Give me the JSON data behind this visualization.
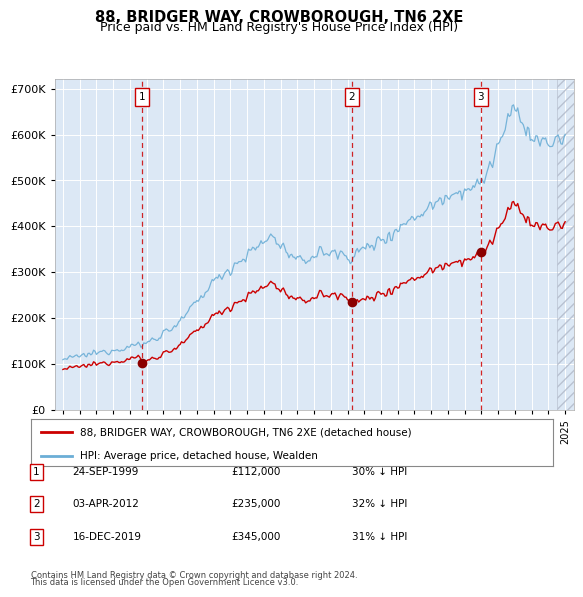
{
  "title": "88, BRIDGER WAY, CROWBOROUGH, TN6 2XE",
  "subtitle": "Price paid vs. HM Land Registry's House Price Index (HPI)",
  "legend_label_red": "88, BRIDGER WAY, CROWBOROUGH, TN6 2XE (detached house)",
  "legend_label_blue": "HPI: Average price, detached house, Wealden",
  "footer_line1": "Contains HM Land Registry data © Crown copyright and database right 2024.",
  "footer_line2": "This data is licensed under the Open Government Licence v3.0.",
  "transactions": [
    {
      "num": 1,
      "date": "24-SEP-1999",
      "price": 112000,
      "hpi_pct": "30% ↓ HPI",
      "year": 1999.73
    },
    {
      "num": 2,
      "date": "03-APR-2012",
      "price": 235000,
      "hpi_pct": "32% ↓ HPI",
      "year": 2012.25
    },
    {
      "num": 3,
      "date": "16-DEC-2019",
      "price": 345000,
      "hpi_pct": "31% ↓ HPI",
      "year": 2019.96
    }
  ],
  "hpi_color": "#6baed6",
  "price_color": "#cc0000",
  "vline_color": "#cc0000",
  "plot_bg": "#dce8f5",
  "ylim": [
    0,
    720000
  ],
  "yticks": [
    0,
    100000,
    200000,
    300000,
    400000,
    500000,
    600000,
    700000
  ],
  "xlim_start": 1994.5,
  "xlim_end": 2025.5,
  "hpi_data_years": [
    1995.0,
    1995.083,
    1995.167,
    1995.25,
    1995.333,
    1995.417,
    1995.5,
    1995.583,
    1995.667,
    1995.75,
    1995.833,
    1995.917,
    1996.0,
    1996.083,
    1996.167,
    1996.25,
    1996.333,
    1996.417,
    1996.5,
    1996.583,
    1996.667,
    1996.75,
    1996.833,
    1996.917,
    1997.0,
    1997.083,
    1997.167,
    1997.25,
    1997.333,
    1997.417,
    1997.5,
    1997.583,
    1997.667,
    1997.75,
    1997.833,
    1997.917,
    1998.0,
    1998.083,
    1998.167,
    1998.25,
    1998.333,
    1998.417,
    1998.5,
    1998.583,
    1998.667,
    1998.75,
    1998.833,
    1998.917,
    1999.0,
    1999.083,
    1999.167,
    1999.25,
    1999.333,
    1999.417,
    1999.5,
    1999.583,
    1999.667,
    1999.75,
    1999.833,
    1999.917,
    2000.0,
    2000.083,
    2000.167,
    2000.25,
    2000.333,
    2000.417,
    2000.5,
    2000.583,
    2000.667,
    2000.75,
    2000.833,
    2000.917,
    2001.0,
    2001.083,
    2001.167,
    2001.25,
    2001.333,
    2001.417,
    2001.5,
    2001.583,
    2001.667,
    2001.75,
    2001.833,
    2001.917,
    2002.0,
    2002.083,
    2002.167,
    2002.25,
    2002.333,
    2002.417,
    2002.5,
    2002.583,
    2002.667,
    2002.75,
    2002.833,
    2002.917,
    2003.0,
    2003.083,
    2003.167,
    2003.25,
    2003.333,
    2003.417,
    2003.5,
    2003.583,
    2003.667,
    2003.75,
    2003.833,
    2003.917,
    2004.0,
    2004.083,
    2004.167,
    2004.25,
    2004.333,
    2004.417,
    2004.5,
    2004.583,
    2004.667,
    2004.75,
    2004.833,
    2004.917,
    2005.0,
    2005.083,
    2005.167,
    2005.25,
    2005.333,
    2005.417,
    2005.5,
    2005.583,
    2005.667,
    2005.75,
    2005.833,
    2005.917,
    2006.0,
    2006.083,
    2006.167,
    2006.25,
    2006.333,
    2006.417,
    2006.5,
    2006.583,
    2006.667,
    2006.75,
    2006.833,
    2006.917,
    2007.0,
    2007.083,
    2007.167,
    2007.25,
    2007.333,
    2007.417,
    2007.5,
    2007.583,
    2007.667,
    2007.75,
    2007.833,
    2007.917,
    2008.0,
    2008.083,
    2008.167,
    2008.25,
    2008.333,
    2008.417,
    2008.5,
    2008.583,
    2008.667,
    2008.75,
    2008.833,
    2008.917,
    2009.0,
    2009.083,
    2009.167,
    2009.25,
    2009.333,
    2009.417,
    2009.5,
    2009.583,
    2009.667,
    2009.75,
    2009.833,
    2009.917,
    2010.0,
    2010.083,
    2010.167,
    2010.25,
    2010.333,
    2010.417,
    2010.5,
    2010.583,
    2010.667,
    2010.75,
    2010.833,
    2010.917,
    2011.0,
    2011.083,
    2011.167,
    2011.25,
    2011.333,
    2011.417,
    2011.5,
    2011.583,
    2011.667,
    2011.75,
    2011.833,
    2011.917,
    2012.0,
    2012.083,
    2012.167,
    2012.25,
    2012.333,
    2012.417,
    2012.5,
    2012.583,
    2012.667,
    2012.75,
    2012.833,
    2012.917,
    2013.0,
    2013.083,
    2013.167,
    2013.25,
    2013.333,
    2013.417,
    2013.5,
    2013.583,
    2013.667,
    2013.75,
    2013.833,
    2013.917,
    2014.0,
    2014.083,
    2014.167,
    2014.25,
    2014.333,
    2014.417,
    2014.5,
    2014.583,
    2014.667,
    2014.75,
    2014.833,
    2014.917,
    2015.0,
    2015.083,
    2015.167,
    2015.25,
    2015.333,
    2015.417,
    2015.5,
    2015.583,
    2015.667,
    2015.75,
    2015.833,
    2015.917,
    2016.0,
    2016.083,
    2016.167,
    2016.25,
    2016.333,
    2016.417,
    2016.5,
    2016.583,
    2016.667,
    2016.75,
    2016.833,
    2016.917,
    2017.0,
    2017.083,
    2017.167,
    2017.25,
    2017.333,
    2017.417,
    2017.5,
    2017.583,
    2017.667,
    2017.75,
    2017.833,
    2017.917,
    2018.0,
    2018.083,
    2018.167,
    2018.25,
    2018.333,
    2018.417,
    2018.5,
    2018.583,
    2018.667,
    2018.75,
    2018.833,
    2018.917,
    2019.0,
    2019.083,
    2019.167,
    2019.25,
    2019.333,
    2019.417,
    2019.5,
    2019.583,
    2019.667,
    2019.75,
    2019.833,
    2019.917,
    2020.0,
    2020.083,
    2020.167,
    2020.25,
    2020.333,
    2020.417,
    2020.5,
    2020.583,
    2020.667,
    2020.75,
    2020.833,
    2020.917,
    2021.0,
    2021.083,
    2021.167,
    2021.25,
    2021.333,
    2021.417,
    2021.5,
    2021.583,
    2021.667,
    2021.75,
    2021.833,
    2021.917,
    2022.0,
    2022.083,
    2022.167,
    2022.25,
    2022.333,
    2022.417,
    2022.5,
    2022.583,
    2022.667,
    2022.75,
    2022.833,
    2022.917,
    2023.0,
    2023.083,
    2023.167,
    2023.25,
    2023.333,
    2023.417,
    2023.5,
    2023.583,
    2023.667,
    2023.75,
    2023.833,
    2023.917,
    2024.0,
    2024.083,
    2024.167,
    2024.25,
    2024.333,
    2024.417,
    2024.5,
    2024.583,
    2024.667,
    2024.75,
    2024.833,
    2024.917,
    2025.0
  ]
}
